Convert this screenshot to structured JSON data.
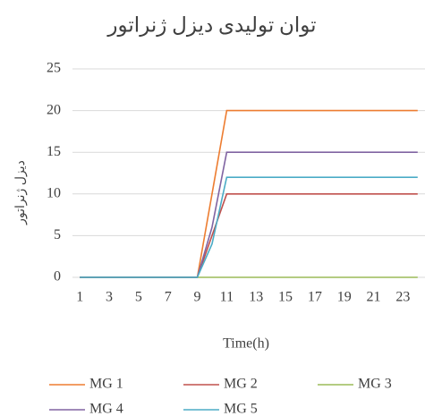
{
  "chart_data": {
    "type": "line",
    "title": "توان تولیدی دیزل ژنراتور",
    "x_label": "Time(h)",
    "y_label": "دیزل ژنراتور",
    "categories": [
      1,
      null,
      3,
      null,
      5,
      null,
      7,
      null,
      9,
      null,
      11,
      null,
      13,
      null,
      15,
      null,
      17,
      null,
      19,
      null,
      21,
      null,
      23,
      null
    ],
    "series": [
      {
        "name": "MG 1",
        "color": "#ed7d31",
        "values": [
          0,
          0,
          0,
          0,
          0,
          0,
          0,
          0,
          0,
          10,
          20,
          20,
          20,
          20,
          20,
          20,
          20,
          20,
          20,
          20,
          20,
          20,
          20,
          20
        ]
      },
      {
        "name": "MG 2",
        "color": "#c0504d",
        "values": [
          0,
          0,
          0,
          0,
          0,
          0,
          0,
          0,
          0,
          5,
          10,
          10,
          10,
          10,
          10,
          10,
          10,
          10,
          10,
          10,
          10,
          10,
          10,
          10
        ]
      },
      {
        "name": "MG 3",
        "color": "#9bbb59",
        "values": [
          0,
          0,
          0,
          0,
          0,
          0,
          0,
          0,
          0,
          0,
          0,
          0,
          0,
          0,
          0,
          0,
          0,
          0,
          0,
          0,
          0,
          0,
          0,
          0
        ]
      },
      {
        "name": "MG 4",
        "color": "#8064a2",
        "values": [
          0,
          0,
          0,
          0,
          0,
          0,
          0,
          0,
          0,
          6,
          15,
          15,
          15,
          15,
          15,
          15,
          15,
          15,
          15,
          15,
          15,
          15,
          15,
          15
        ]
      },
      {
        "name": "MG 5",
        "color": "#4bacc6",
        "values": [
          0,
          0,
          0,
          0,
          0,
          0,
          0,
          0,
          0,
          4,
          12,
          12,
          12,
          12,
          12,
          12,
          12,
          12,
          12,
          12,
          12,
          12,
          12,
          12
        ]
      }
    ],
    "ylim": [
      0,
      25
    ],
    "yticks": [
      0,
      5,
      10,
      15,
      20,
      25
    ],
    "grid": true,
    "legend": "bottom"
  }
}
